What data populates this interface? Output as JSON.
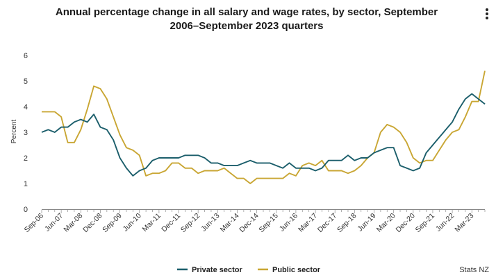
{
  "menu_icon": "more-vertical-icon",
  "credit": "Stats NZ",
  "chart_data": {
    "type": "line",
    "title": "Annual percentage change in all salary and wage rates, by sector, September 2006–September 2023 quarters",
    "title_lines": [
      "Annual percentage change in all salary and wage rates, by sector, September",
      "2006–September 2023 quarters"
    ],
    "xlabel": "",
    "ylabel": "Percent",
    "ylim": [
      0,
      6
    ],
    "yticks": [
      0,
      1,
      2,
      3,
      4,
      5,
      6
    ],
    "grid": false,
    "legend_position": "bottom-center",
    "x_tick_labels": [
      "Sep-06",
      "Jun-07",
      "Mar-08",
      "Dec-08",
      "Sep-09",
      "Jun-10",
      "Mar-11",
      "Dec-11",
      "Sep-12",
      "Jun-13",
      "Mar-14",
      "Dec-14",
      "Sep-15",
      "Jun-16",
      "Mar-17",
      "Dec-17",
      "Sep-18",
      "Jun-19",
      "Mar-20",
      "Dec-20",
      "Sep-21",
      "Jun-22",
      "Mar-23"
    ],
    "series": [
      {
        "name": "Private sector",
        "color": "#1b5e6b",
        "values": [
          3.0,
          3.1,
          3.0,
          3.2,
          3.2,
          3.4,
          3.5,
          3.4,
          3.7,
          3.2,
          3.1,
          2.7,
          2.0,
          1.6,
          1.3,
          1.5,
          1.6,
          1.9,
          2.0,
          2.0,
          2.0,
          2.0,
          2.1,
          2.1,
          2.1,
          2.0,
          1.8,
          1.8,
          1.7,
          1.7,
          1.7,
          1.8,
          1.9,
          1.8,
          1.8,
          1.8,
          1.7,
          1.6,
          1.8,
          1.6,
          1.6,
          1.6,
          1.5,
          1.6,
          1.9,
          1.9,
          1.9,
          2.1,
          1.9,
          2.0,
          2.0,
          2.2,
          2.3,
          2.4,
          2.4,
          1.7,
          1.6,
          1.5,
          1.6,
          2.2,
          2.5,
          2.8,
          3.1,
          3.4,
          3.9,
          4.3,
          4.5,
          4.3,
          4.1
        ]
      },
      {
        "name": "Public sector",
        "color": "#c9a633",
        "values": [
          3.8,
          3.8,
          3.8,
          3.6,
          2.6,
          2.6,
          3.1,
          3.9,
          4.8,
          4.7,
          4.3,
          3.6,
          2.9,
          2.4,
          2.3,
          2.1,
          1.3,
          1.4,
          1.4,
          1.5,
          1.8,
          1.8,
          1.6,
          1.6,
          1.4,
          1.5,
          1.5,
          1.5,
          1.6,
          1.4,
          1.2,
          1.2,
          1.0,
          1.2,
          1.2,
          1.2,
          1.2,
          1.2,
          1.4,
          1.3,
          1.7,
          1.8,
          1.7,
          1.9,
          1.5,
          1.5,
          1.5,
          1.4,
          1.5,
          1.7,
          2.0,
          2.2,
          3.0,
          3.3,
          3.2,
          3.0,
          2.6,
          2.0,
          1.8,
          1.9,
          1.9,
          2.3,
          2.7,
          3.0,
          3.1,
          3.6,
          4.2,
          4.2,
          5.4
        ]
      }
    ]
  }
}
